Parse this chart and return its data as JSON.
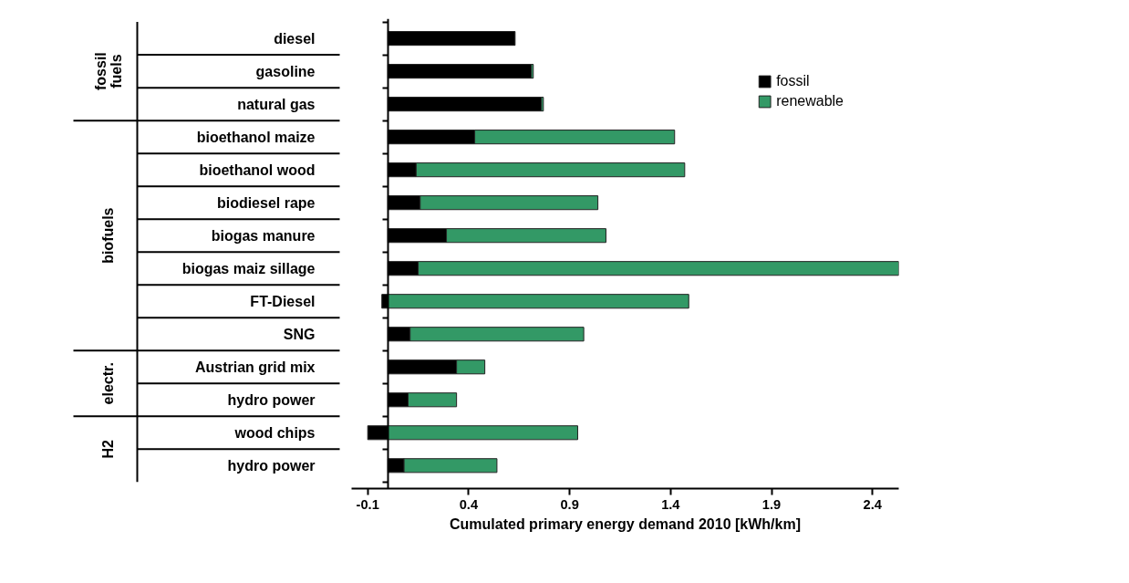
{
  "chart_data": {
    "type": "bar",
    "orientation": "horizontal",
    "stacked": true,
    "xlabel": "Cumulated primary energy demand 2010 [kWh/km]",
    "categories": [
      "diesel",
      "gasoline",
      "natural gas",
      "bioethanol maize",
      "bioethanol wood",
      "biodiesel rape",
      "biogas manure",
      "biogas maiz sillage",
      "FT-Diesel",
      "SNG",
      "Austrian grid mix",
      "hydro power",
      "wood chips",
      "hydro power"
    ],
    "series": [
      {
        "name": "fossil",
        "color": "#000000",
        "values": [
          0.63,
          0.71,
          0.76,
          0.43,
          0.14,
          0.16,
          0.29,
          0.15,
          -0.03,
          0.11,
          0.34,
          0.1,
          -0.1,
          0.08
        ]
      },
      {
        "name": "renewable",
        "color": "#339966",
        "values": [
          null,
          0.01,
          0.01,
          0.99,
          1.33,
          0.88,
          0.79,
          2.39,
          1.49,
          0.86,
          0.14,
          0.24,
          0.94,
          0.46
        ]
      }
    ],
    "xlim": [
      -0.18,
      2.53
    ],
    "xticks": [
      -0.1,
      0.4,
      0.9,
      1.4,
      1.9,
      2.4
    ],
    "annotations": [
      "fossil fuels",
      "biofuels",
      "electr.",
      "H2"
    ],
    "grid": false,
    "legend": "top right"
  }
}
